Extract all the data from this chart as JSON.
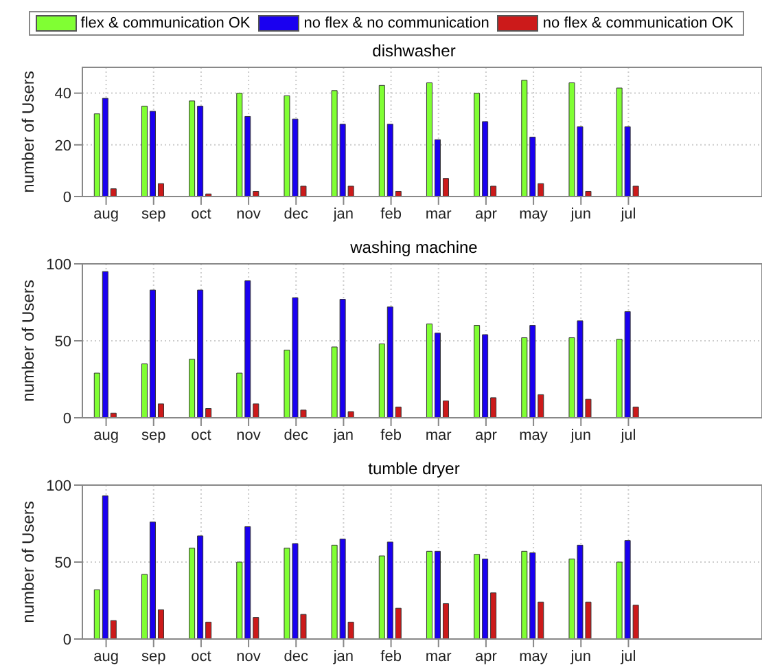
{
  "chart_data": [
    {
      "type": "bar",
      "title": "dishwasher",
      "ylabel": "number of Users",
      "legend": "top",
      "grid": true,
      "categories": [
        "aug",
        "sep",
        "oct",
        "nov",
        "dec",
        "jan",
        "feb",
        "mar",
        "apr",
        "may",
        "jun",
        "jul"
      ],
      "ylim": [
        0,
        50
      ],
      "yticks": [
        0,
        20,
        40
      ],
      "series": [
        {
          "name": "flex & communication OK",
          "color": "#80ff33",
          "values": [
            32,
            35,
            37,
            40,
            39,
            41,
            43,
            44,
            40,
            45,
            44,
            42
          ]
        },
        {
          "name": "no flex & no communication",
          "color": "#1a00f0",
          "values": [
            38,
            33,
            35,
            31,
            30,
            28,
            28,
            22,
            29,
            23,
            27,
            27
          ]
        },
        {
          "name": "no flex & communication OK",
          "color": "#cc1a1a",
          "values": [
            3,
            5,
            1,
            2,
            4,
            4,
            2,
            7,
            4,
            5,
            2,
            4
          ]
        }
      ]
    },
    {
      "type": "bar",
      "title": "washing machine",
      "ylabel": "number of Users",
      "grid": true,
      "categories": [
        "aug",
        "sep",
        "oct",
        "nov",
        "dec",
        "jan",
        "feb",
        "mar",
        "apr",
        "may",
        "jun",
        "jul"
      ],
      "ylim": [
        0,
        100
      ],
      "yticks": [
        0,
        50,
        100
      ],
      "series": [
        {
          "color": "#80ff33",
          "values": [
            29,
            35,
            38,
            29,
            44,
            46,
            48,
            61,
            60,
            52,
            52,
            51
          ]
        },
        {
          "color": "#1a00f0",
          "values": [
            95,
            83,
            83,
            89,
            78,
            77,
            72,
            55,
            54,
            60,
            63,
            69
          ]
        },
        {
          "color": "#cc1a1a",
          "values": [
            3,
            9,
            6,
            9,
            5,
            4,
            7,
            11,
            13,
            15,
            12,
            7
          ]
        }
      ]
    },
    {
      "type": "bar",
      "title": "tumble dryer",
      "ylabel": "number of Users",
      "grid": true,
      "categories": [
        "aug",
        "sep",
        "oct",
        "nov",
        "dec",
        "jan",
        "feb",
        "mar",
        "apr",
        "may",
        "jun",
        "jul"
      ],
      "ylim": [
        0,
        100
      ],
      "yticks": [
        0,
        50,
        100
      ],
      "series": [
        {
          "color": "#80ff33",
          "values": [
            32,
            42,
            59,
            50,
            59,
            61,
            54,
            57,
            55,
            57,
            52,
            50
          ]
        },
        {
          "color": "#1a00f0",
          "values": [
            93,
            76,
            67,
            73,
            62,
            65,
            63,
            57,
            52,
            56,
            61,
            64
          ]
        },
        {
          "color": "#cc1a1a",
          "values": [
            12,
            19,
            11,
            14,
            16,
            11,
            20,
            23,
            30,
            24,
            24,
            22
          ]
        }
      ]
    }
  ]
}
